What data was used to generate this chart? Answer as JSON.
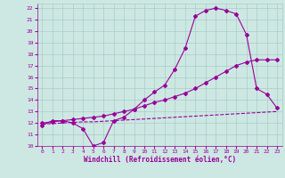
{
  "xlabel": "Windchill (Refroidissement éolien,°C)",
  "bg_color": "#cde8e3",
  "grid_color": "#aaccc7",
  "line_color": "#990099",
  "xlim": [
    -0.5,
    23.5
  ],
  "ylim": [
    10,
    22.4
  ],
  "xticks": [
    0,
    1,
    2,
    3,
    4,
    5,
    6,
    7,
    8,
    9,
    10,
    11,
    12,
    13,
    14,
    15,
    16,
    17,
    18,
    19,
    20,
    21,
    22,
    23
  ],
  "yticks": [
    10,
    11,
    12,
    13,
    14,
    15,
    16,
    17,
    18,
    19,
    20,
    21,
    22
  ],
  "curve1_x": [
    0,
    1,
    2,
    3,
    4,
    5,
    6,
    7,
    8,
    9,
    10,
    11,
    12,
    13,
    14,
    15,
    16,
    17,
    18,
    19,
    20,
    21,
    22,
    23
  ],
  "curve1_y": [
    11.8,
    12.2,
    12.2,
    12.0,
    11.5,
    10.0,
    10.3,
    12.2,
    12.5,
    13.2,
    14.0,
    14.7,
    15.3,
    16.7,
    18.5,
    21.3,
    21.8,
    22.0,
    21.8,
    21.5,
    19.7,
    15.0,
    14.5,
    13.3
  ],
  "curve2_x": [
    0,
    1,
    2,
    3,
    4,
    5,
    6,
    7,
    8,
    9,
    10,
    11,
    12,
    13,
    14,
    15,
    16,
    17,
    18,
    19,
    20,
    21,
    22,
    23
  ],
  "curve2_y": [
    12.0,
    12.1,
    12.2,
    12.3,
    12.4,
    12.5,
    12.6,
    12.8,
    13.0,
    13.2,
    13.5,
    13.8,
    14.0,
    14.3,
    14.6,
    15.0,
    15.5,
    16.0,
    16.5,
    17.0,
    17.3,
    17.5,
    17.5,
    17.5
  ],
  "curve3_x": [
    0,
    1,
    2,
    3,
    4,
    5,
    6,
    7,
    8,
    9,
    10,
    11,
    12,
    13,
    14,
    15,
    16,
    17,
    18,
    19,
    20,
    21,
    22,
    23
  ],
  "curve3_y": [
    11.9,
    11.95,
    12.0,
    12.05,
    12.1,
    12.1,
    12.15,
    12.2,
    12.25,
    12.3,
    12.35,
    12.4,
    12.45,
    12.5,
    12.55,
    12.6,
    12.65,
    12.7,
    12.75,
    12.8,
    12.85,
    12.9,
    12.95,
    13.0
  ]
}
